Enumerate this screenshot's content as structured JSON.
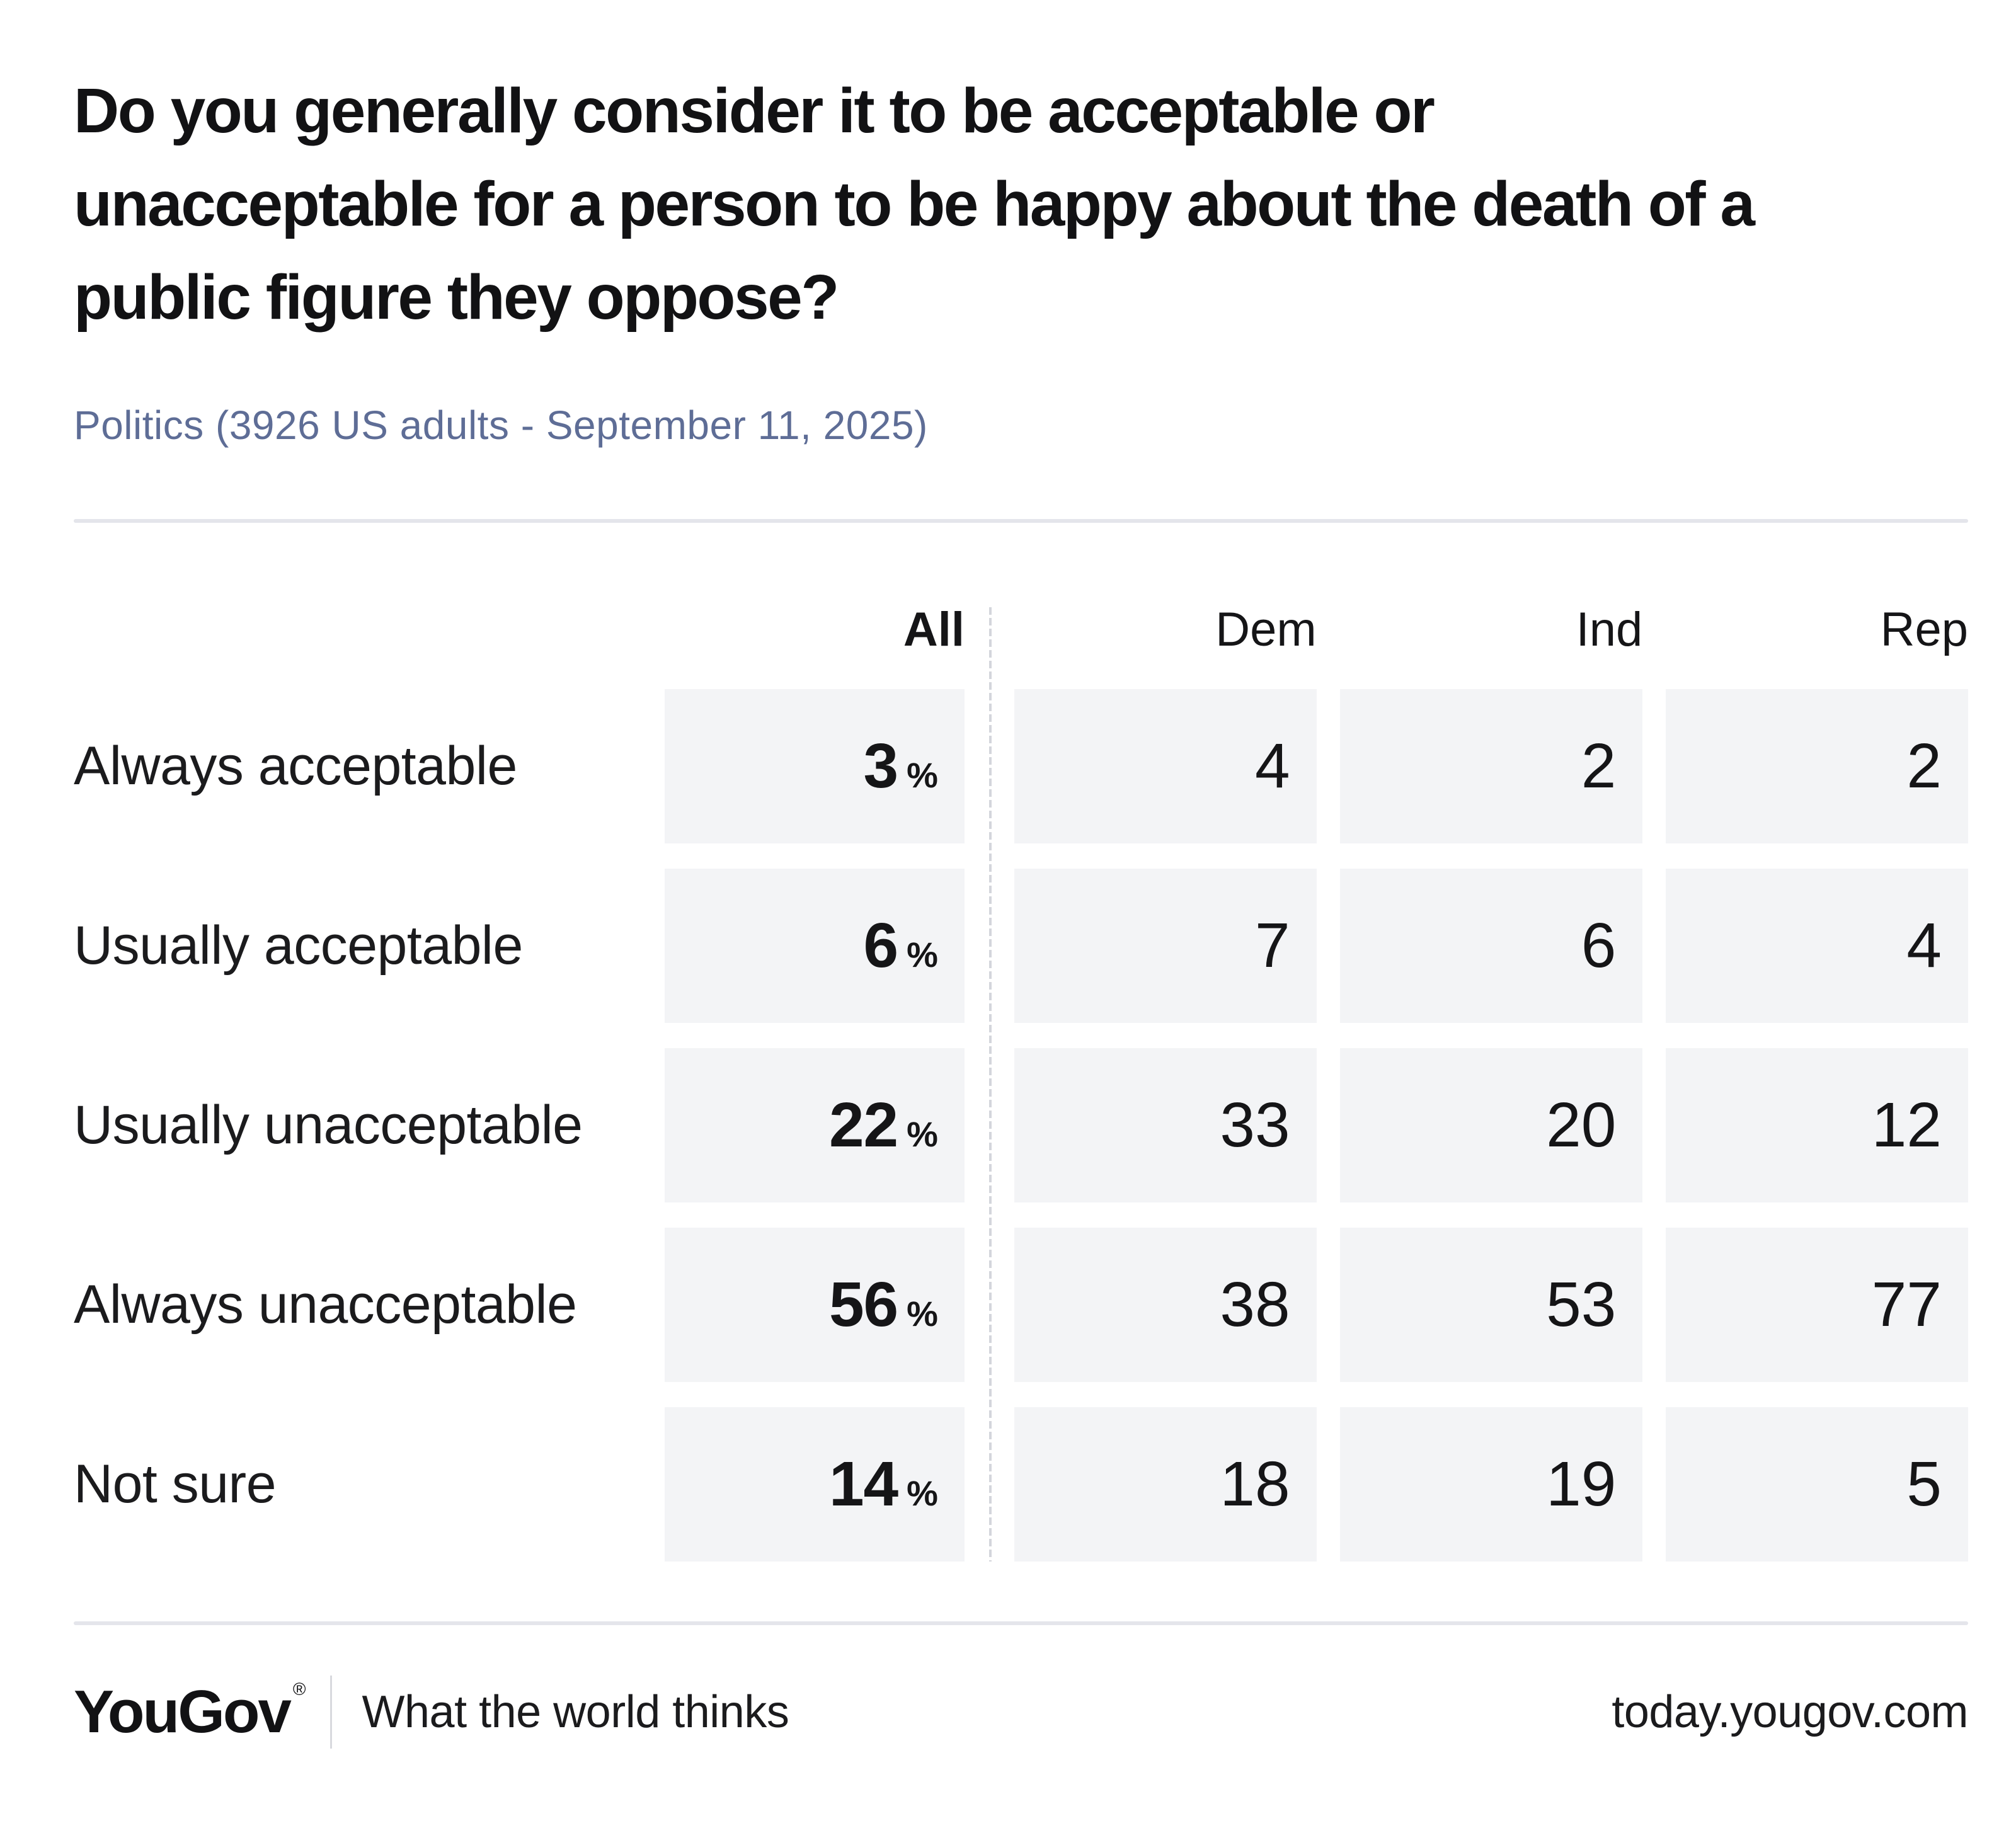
{
  "page": {
    "title_display": "Do you generally consider it to be acceptable or\nunacceptable for a person to be happy about the death of a\npublic figure they oppose?",
    "subtitle": "Politics (3926 US adults - September 11, 2025)"
  },
  "chart_data": {
    "type": "table",
    "title": "Do you generally consider it to be acceptable or unacceptable for a person to be happy about the death of a public figure they oppose?",
    "subtitle": "Politics (3926 US adults - September 11, 2025)",
    "columns": [
      "All",
      "Dem",
      "Ind",
      "Rep"
    ],
    "categories": [
      "Always acceptable",
      "Usually acceptable",
      "Usually unacceptable",
      "Always unacceptable",
      "Not sure"
    ],
    "percent_sign": "%",
    "series": [
      {
        "name": "All",
        "unit": "%",
        "values": [
          3,
          6,
          22,
          56,
          14
        ]
      },
      {
        "name": "Dem",
        "values": [
          4,
          7,
          33,
          38,
          18
        ]
      },
      {
        "name": "Ind",
        "values": [
          2,
          6,
          20,
          53,
          19
        ]
      },
      {
        "name": "Rep",
        "values": [
          2,
          4,
          12,
          77,
          5
        ]
      }
    ],
    "layout": {
      "all_column_separated_by_dashed_line": true,
      "cell_background": "#F3F4F6",
      "values_bold_in_all_column": true
    }
  },
  "footer": {
    "logo": "YouGov",
    "registered": "®",
    "tagline": "What the world thinks",
    "url": "today.yougov.com"
  },
  "colors": {
    "title_text": "#121214",
    "subtitle_text": "#5E6D96",
    "body_text": "#151517",
    "cell_background": "#F3F4F6",
    "divider": "#E4E5EB",
    "dashed_line": "#D4D6DC",
    "page_background": "#FFFFFF"
  }
}
